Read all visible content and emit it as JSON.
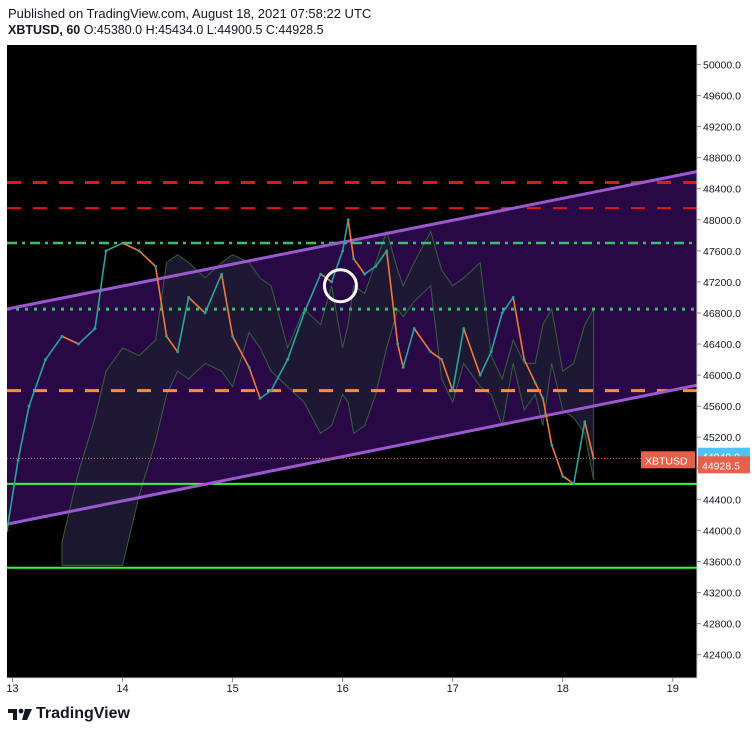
{
  "header": {
    "published": "Published on TradingView.com, August 18, 2021 07:58:22 UTC",
    "symbol": "XBTUSD, 60",
    "open": "O:45380.0",
    "high": "H:45434.0",
    "low": "L:44900.5",
    "close": "C:44928.5"
  },
  "footer": {
    "brand": "TradingView"
  },
  "colors": {
    "background": "#000000",
    "channel_fill": "#2a0a4a",
    "channel_line": "#9b59d0",
    "red_dashed": "#e01818",
    "green_level": "#33ff33",
    "orange_dashed": "#ff8c3a",
    "cloud_fill": "#1e1a33",
    "candle_up": "#26a69a",
    "candle_down": "#ef7a3a",
    "price_tag": "#e8604a",
    "last_tag": "#4fc3f7"
  },
  "chart_data": {
    "type": "line",
    "symbol": "XBTUSD",
    "timeframe": "60",
    "x_ticks": [
      "13",
      "14",
      "15",
      "16",
      "17",
      "18",
      "19"
    ],
    "y_ticks": [
      "50000.0",
      "49600.0",
      "49200.0",
      "48800.0",
      "48400.0",
      "48000.0",
      "47600.0",
      "47200.0",
      "46800.0",
      "46400.0",
      "46000.0",
      "45600.0",
      "45200.0",
      "44800.0",
      "44400.0",
      "44000.0",
      "43600.0",
      "43200.0",
      "42800.0",
      "42400.0"
    ],
    "ylim": [
      42100,
      50250
    ],
    "xlim": [
      12.95,
      19.22
    ],
    "price_series": {
      "x": [
        12.95,
        13.05,
        13.15,
        13.3,
        13.45,
        13.6,
        13.75,
        13.85,
        14.0,
        14.15,
        14.3,
        14.4,
        14.5,
        14.6,
        14.75,
        14.9,
        15.0,
        15.15,
        15.25,
        15.35,
        15.5,
        15.65,
        15.8,
        15.9,
        16.0,
        16.05,
        16.1,
        16.2,
        16.3,
        16.4,
        16.5,
        16.55,
        16.65,
        16.8,
        16.9,
        17.0,
        17.1,
        17.25,
        17.35,
        17.45,
        17.55,
        17.65,
        17.75,
        17.82,
        17.9,
        18.0,
        18.1,
        18.2,
        18.28
      ],
      "values": [
        44000,
        44900,
        45600,
        46200,
        46500,
        46400,
        46600,
        47600,
        47700,
        47600,
        47400,
        46500,
        46300,
        47000,
        46800,
        47300,
        46500,
        46100,
        45700,
        45800,
        46200,
        46800,
        47300,
        47200,
        47600,
        48000,
        47500,
        47300,
        47400,
        47600,
        46400,
        46100,
        46600,
        46300,
        46200,
        45800,
        46600,
        46000,
        46300,
        46800,
        47000,
        46200,
        45900,
        45700,
        45100,
        44700,
        44600,
        45400,
        44929
      ]
    },
    "channel": {
      "upper": [
        [
          12.95,
          46850
        ],
        [
          19.22,
          48620
        ]
      ],
      "lower": [
        [
          12.95,
          44080
        ],
        [
          19.22,
          45870
        ]
      ]
    },
    "levels": [
      {
        "name": "red-dashed-high",
        "value": 48480,
        "style": "dashed",
        "color": "#e01818"
      },
      {
        "name": "red-dashed-low",
        "value": 48150,
        "style": "dashed",
        "color": "#e01818"
      },
      {
        "name": "green-purple-dashdot",
        "value": 47700,
        "style": "dashdot",
        "color": "#3cbf6a"
      },
      {
        "name": "green-dotted",
        "value": 46850,
        "style": "dotted",
        "color": "#3cbf6a"
      },
      {
        "name": "orange-dotted",
        "value": 45800,
        "style": "dashed",
        "color": "#ff8c3a"
      },
      {
        "name": "green-solid-mid",
        "value": 44600,
        "style": "solid",
        "color": "#33ff33"
      },
      {
        "name": "green-solid-low",
        "value": 43520,
        "style": "solid",
        "color": "#33ff33"
      }
    ],
    "circle_marker": {
      "x": 15.98,
      "y": 47150
    },
    "price_tags": [
      {
        "label": "44949.0",
        "value": 44949,
        "color": "#4fc3f7"
      },
      {
        "label": "44928.5",
        "value": 44928.5,
        "color": "#e8604a"
      }
    ],
    "symbol_tag": "XBTUSD",
    "grid": false
  }
}
